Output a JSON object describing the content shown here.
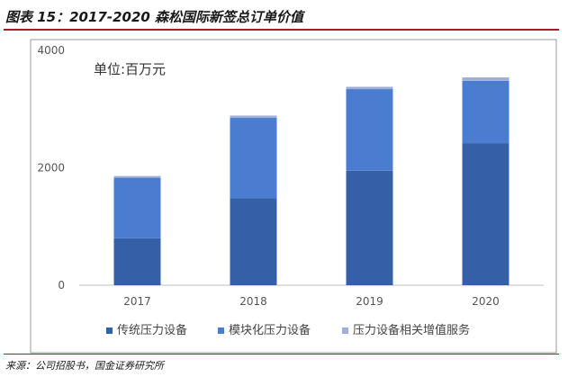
{
  "figure": {
    "title": "图表 15：2017-2020 森松国际新签总订单价值",
    "source": "来源：公司招股书，国金证券研究所"
  },
  "chart_data": {
    "type": "bar",
    "stacked": true,
    "unit_label": "单位:百万元",
    "categories": [
      "2017",
      "2018",
      "2019",
      "2020"
    ],
    "series": [
      {
        "name": "传统压力设备",
        "color": "#3560a8",
        "values": [
          800,
          1480,
          1950,
          2420
        ]
      },
      {
        "name": "模块化压力设备",
        "color": "#4a7cd0",
        "values": [
          1030,
          1370,
          1390,
          1060
        ]
      },
      {
        "name": "压力设备相关增值服务",
        "color": "#9fb0d8",
        "values": [
          30,
          40,
          40,
          60
        ]
      }
    ],
    "ylim": [
      0,
      4000
    ],
    "yticks": [
      0,
      2000,
      4000
    ],
    "grid": false,
    "legend_position": "bottom"
  }
}
